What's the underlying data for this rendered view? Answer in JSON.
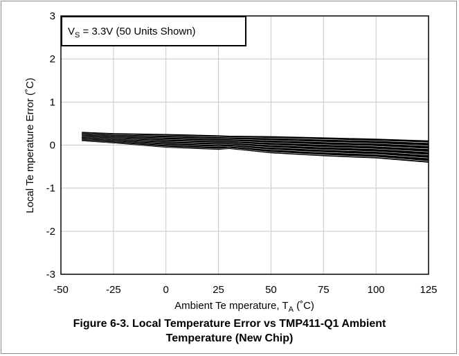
{
  "chart_data": {
    "type": "line",
    "title": "",
    "annotation": {
      "v": "V",
      "sub": "S",
      "rest": " = 3.3V (50 Units Shown)"
    },
    "xlabel": {
      "prefix": "Ambient Te mperature, T",
      "sub": "A",
      "suffix": " (˚C)"
    },
    "ylabel": "Local Te mperature Error (˚C)",
    "xlim": [
      -50,
      125
    ],
    "ylim": [
      -3,
      3
    ],
    "xticks": [
      "-50",
      "-25",
      "0",
      "25",
      "50",
      "75",
      "100",
      "125"
    ],
    "yticks": [
      "3",
      "2",
      "1",
      "0",
      "-1",
      "-2",
      "-3"
    ],
    "grid": true,
    "series_count": 50,
    "x": [
      -40,
      -25,
      0,
      25,
      30,
      50,
      75,
      100,
      125
    ],
    "envelope_upper": [
      0.3,
      0.27,
      0.25,
      0.22,
      0.21,
      0.2,
      0.17,
      0.14,
      0.1
    ],
    "envelope_lower": [
      0.1,
      0.05,
      -0.05,
      -0.1,
      -0.08,
      -0.18,
      -0.25,
      -0.3,
      -0.4
    ]
  },
  "caption": {
    "line1": "Figure 6-3. Local Temperature Error vs TMP411-Q1 Ambient",
    "line2": "Temperature (New Chip)"
  }
}
